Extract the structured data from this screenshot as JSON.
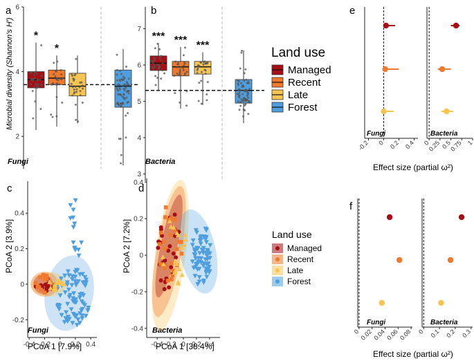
{
  "colors": {
    "managed": "#a50f15",
    "recent": "#f0792b",
    "late": "#f6c452",
    "forest": "#4f9fe0",
    "axis": "#222222",
    "ref": "#111111"
  },
  "panel_labels": {
    "a": "a",
    "b": "b",
    "c": "c",
    "d": "d",
    "e": "e",
    "f": "f"
  },
  "taxa": {
    "fungi": "Fungi",
    "bacteria": "Bacteria"
  },
  "legend_top": {
    "title": "Land use",
    "items": [
      "Managed",
      "Recent",
      "Late",
      "Forest"
    ]
  },
  "legend_mid": {
    "title": "Land use",
    "items": [
      "Managed",
      "Recent",
      "Late",
      "Forest"
    ]
  },
  "chart_data": [
    {
      "id": "a",
      "type": "box",
      "title": "Fungi",
      "ylabel": "Microbial diversity (Shannon's H')",
      "ylim": [
        1.0,
        6.0
      ],
      "yticks": [
        2,
        4,
        6
      ],
      "categories": [
        "Managed",
        "Recent",
        "Late",
        "Forest"
      ],
      "boxes": [
        {
          "q1": 3.5,
          "median": 3.75,
          "q3": 4.0,
          "min": 2.2,
          "max": 4.9,
          "sig": "*"
        },
        {
          "q1": 3.6,
          "median": 3.8,
          "q3": 4.05,
          "min": 2.3,
          "max": 4.5,
          "sig": "*"
        },
        {
          "q1": 3.25,
          "median": 3.55,
          "q3": 3.95,
          "min": 2.4,
          "max": 4.5,
          "sig": ""
        },
        {
          "q1": 2.9,
          "median": 3.55,
          "q3": 4.05,
          "min": 1.1,
          "max": 4.7,
          "sig": ""
        }
      ],
      "reference": 3.6
    },
    {
      "id": "b",
      "type": "box",
      "title": "Bacteria",
      "ylim": [
        2.8,
        7.6
      ],
      "yticks": [
        3,
        4,
        5,
        6,
        7
      ],
      "categories": [
        "Managed",
        "Recent",
        "Late",
        "Forest"
      ],
      "boxes": [
        {
          "q1": 5.85,
          "median": 6.05,
          "q3": 6.25,
          "min": 5.3,
          "max": 6.6,
          "sig": "***"
        },
        {
          "q1": 5.7,
          "median": 5.95,
          "q3": 6.1,
          "min": 4.8,
          "max": 6.5,
          "sig": "***"
        },
        {
          "q1": 5.75,
          "median": 5.95,
          "q3": 6.1,
          "min": 4.9,
          "max": 6.35,
          "sig": "***"
        },
        {
          "q1": 4.95,
          "median": 5.3,
          "q3": 5.6,
          "min": 4.4,
          "max": 6.4,
          "sig": ""
        }
      ],
      "reference": 5.3
    },
    {
      "id": "c",
      "type": "scatter",
      "title": "Fungi",
      "xlabel": "PCoA 1 [7.9%]",
      "ylabel": "PCoA 2 [3.9%]",
      "xlim": [
        -0.42,
        0.48
      ],
      "ylim": [
        -0.3,
        0.58
      ],
      "xticks": [
        -0.4,
        -0.2,
        0,
        0.2,
        0.4
      ],
      "yticks": [
        -0.2,
        0,
        0.2,
        0.4
      ],
      "groups": [
        "Managed",
        "Recent",
        "Late",
        "Forest"
      ]
    },
    {
      "id": "d",
      "type": "scatter",
      "title": "Bacteria",
      "xlabel": "PCoA 1 [38.4%]",
      "ylabel": "PCoA 2 [7.2%]",
      "xlim": [
        -0.56,
        0.56
      ],
      "ylim": [
        -0.45,
        0.42
      ],
      "xticks": [
        -0.4,
        -0.2,
        0,
        0.2,
        0.4
      ],
      "yticks": [
        -0.4,
        -0.2,
        0,
        0.2,
        0.4
      ],
      "groups": [
        "Managed",
        "Recent",
        "Late",
        "Forest"
      ]
    },
    {
      "id": "e",
      "type": "dot-ci",
      "xlabel": "Effect size (partial ω²)",
      "facets": [
        {
          "title": "Fungi",
          "xlim": [
            -0.25,
            0.45
          ],
          "xticks": [
            -0.2,
            0.0,
            0.2,
            0.4
          ],
          "points": [
            {
              "group": "Managed",
              "value": 0.03,
              "lo": 0.0,
              "hi": 0.15
            },
            {
              "group": "Recent",
              "value": 0.02,
              "lo": 0.0,
              "hi": 0.2
            },
            {
              "group": "Late",
              "value": 0.0,
              "lo": -0.02,
              "hi": 0.13
            }
          ]
        },
        {
          "title": "Bacteria",
          "xlim": [
            -0.05,
            1.0
          ],
          "xticks": [
            0.0,
            0.25,
            0.5,
            0.75,
            1.0
          ],
          "points": [
            {
              "group": "Managed",
              "value": 0.62,
              "lo": 0.5,
              "hi": 0.7
            },
            {
              "group": "Recent",
              "value": 0.3,
              "lo": 0.2,
              "hi": 0.5
            },
            {
              "group": "Late",
              "value": 0.4,
              "lo": 0.28,
              "hi": 0.55
            }
          ]
        }
      ]
    },
    {
      "id": "f",
      "type": "dot",
      "xlabel": "Effect size (partial ω²)",
      "facets": [
        {
          "title": "Fungi",
          "xlim": [
            -0.002,
            0.082
          ],
          "xticks": [
            0.0,
            0.02,
            0.04,
            0.06,
            0.08
          ],
          "points": [
            {
              "group": "Managed",
              "value": 0.047
            },
            {
              "group": "Recent",
              "value": 0.062
            },
            {
              "group": "Late",
              "value": 0.035
            }
          ]
        },
        {
          "title": "Bacteria",
          "xlim": [
            -0.01,
            0.31
          ],
          "xticks": [
            0,
            0.1,
            0.2,
            0.3
          ],
          "points": [
            {
              "group": "Managed",
              "value": 0.24
            },
            {
              "group": "Recent",
              "value": 0.17
            },
            {
              "group": "Late",
              "value": 0.11
            }
          ]
        }
      ]
    }
  ]
}
